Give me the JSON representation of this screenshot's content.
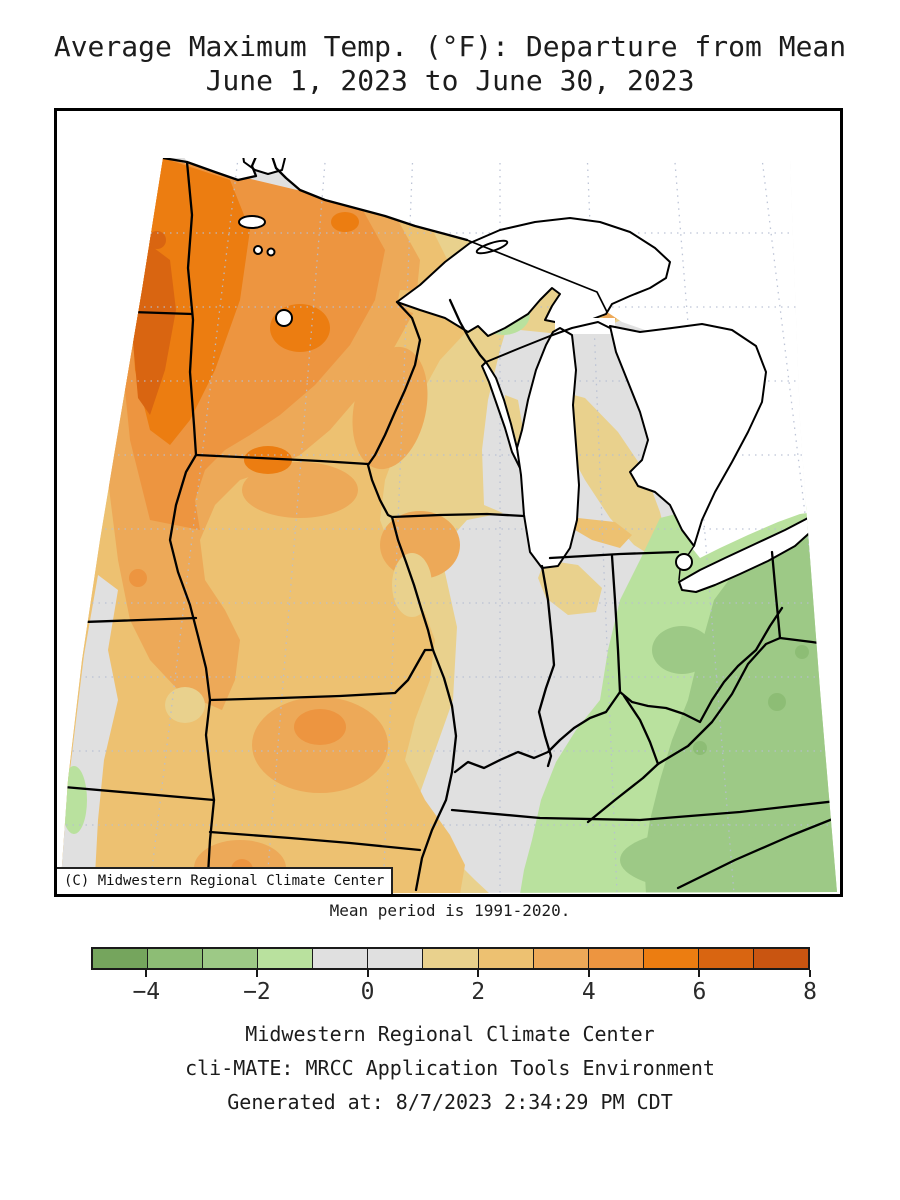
{
  "title": {
    "line1": "Average Maximum Temp. (°F): Departure from Mean",
    "line2": "June 1, 2023 to June 30, 2023"
  },
  "map": {
    "watermark": "(C) Midwestern Regional Climate Center",
    "caption": "Mean period is 1991-2020."
  },
  "colorbar": {
    "min": -5,
    "max": 8,
    "tick_values": [
      -4,
      -2,
      0,
      2,
      4,
      6,
      8
    ],
    "tick_labels": [
      "−4",
      "−2",
      "0",
      "2",
      "4",
      "6",
      "8"
    ],
    "segments": [
      {
        "range": "-5 to -4",
        "color": "#75a55d"
      },
      {
        "range": "-4 to -3",
        "color": "#8dbd75"
      },
      {
        "range": "-3 to -2",
        "color": "#9dc986"
      },
      {
        "range": "-2 to -1",
        "color": "#b9e19e"
      },
      {
        "range": "-1 to 0",
        "color": "#e0e0e0"
      },
      {
        "range": "0 to 1",
        "color": "#e0e0e0"
      },
      {
        "range": "1 to 2",
        "color": "#e9d18d"
      },
      {
        "range": "2 to 3",
        "color": "#edc171"
      },
      {
        "range": "3 to 4",
        "color": "#eda958"
      },
      {
        "range": "4 to 5",
        "color": "#ed9540"
      },
      {
        "range": "5 to 6",
        "color": "#ec7d11"
      },
      {
        "range": "6 to 7",
        "color": "#d96511"
      },
      {
        "range": "7 to 8",
        "color": "#c95511"
      }
    ]
  },
  "footer": {
    "line1": "Midwestern Regional Climate Center",
    "line2": "cli-MATE: MRCC Application Tools Environment",
    "line3": "Generated at: 8/7/2023 2:34:29 PM CDT"
  },
  "chart_data": {
    "type": "map",
    "subtype": "filled-contour choropleth of temperature departure",
    "title": "Average Maximum Temp. (°F): Departure from Mean",
    "period": "June 1, 2023 to June 30, 2023",
    "mean_period": "1991-2020",
    "units": "°F departure from mean",
    "scale_breaks": [
      -5,
      -4,
      -3,
      -2,
      -1,
      0,
      1,
      2,
      3,
      4,
      5,
      6,
      7,
      8
    ],
    "legend_position": "bottom horizontal colorbar",
    "region_pattern": [
      {
        "area": "western Dakotas edge of map",
        "departure": "+5 to +7"
      },
      {
        "area": "Minnesota and eastern Dakotas",
        "departure": "+3 to +6"
      },
      {
        "area": "Iowa, Nebraska, Missouri, western Wisconsin, western Illinois",
        "departure": "+1 to +4"
      },
      {
        "area": "central Missouri local maximum",
        "departure": "+4 to +5"
      },
      {
        "area": "Michigan, Indiana, eastern Illinois, lower left map edge",
        "departure": "-1 to +1 (near normal)"
      },
      {
        "area": "Ohio, Kentucky, West Virginia, Tennessee, Virginia",
        "departure": "-1 to -3"
      },
      {
        "area": "West Virginia / central Ohio local minima",
        "departure": "-3 to -4"
      }
    ]
  }
}
